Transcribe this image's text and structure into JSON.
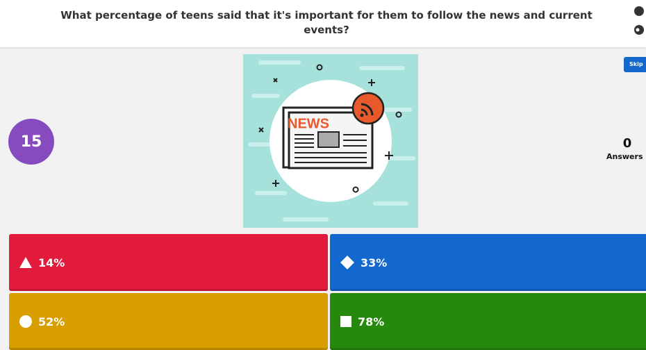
{
  "header": {
    "question": "What percentage of teens said that it's important for them to follow the news and current events?"
  },
  "image": {
    "text": "NEWS"
  },
  "timer": 15,
  "skip": "Skip",
  "answers": {
    "count": 0,
    "label": "Answers"
  },
  "options": [
    {
      "label": "14%"
    },
    {
      "label": "33%"
    },
    {
      "label": "52%"
    },
    {
      "label": "78%"
    }
  ]
}
